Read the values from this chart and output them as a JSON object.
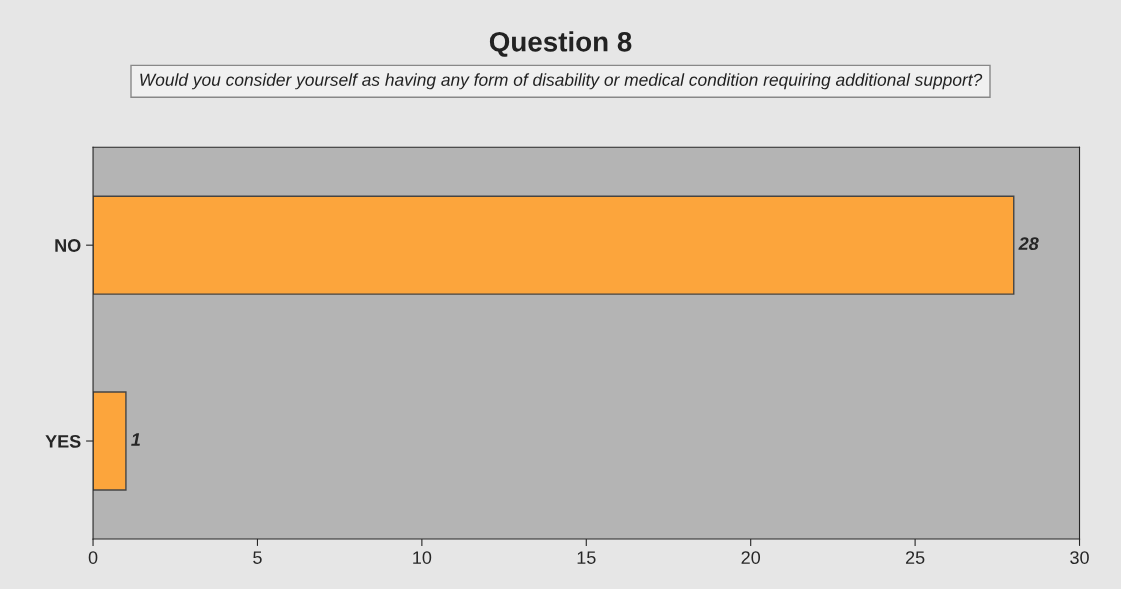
{
  "chart_data": {
    "type": "bar",
    "orientation": "horizontal",
    "title": "Question 8",
    "subtitle": "Would you consider yourself as having any form of disability or medical condition requiring additional support?",
    "categories": [
      "NO",
      "YES"
    ],
    "values": [
      28,
      1
    ],
    "color": "#fca53c",
    "xlim": [
      0,
      30
    ],
    "xticks": [
      0,
      5,
      10,
      15,
      20,
      25,
      30
    ],
    "data_labels": true,
    "grid": false
  }
}
